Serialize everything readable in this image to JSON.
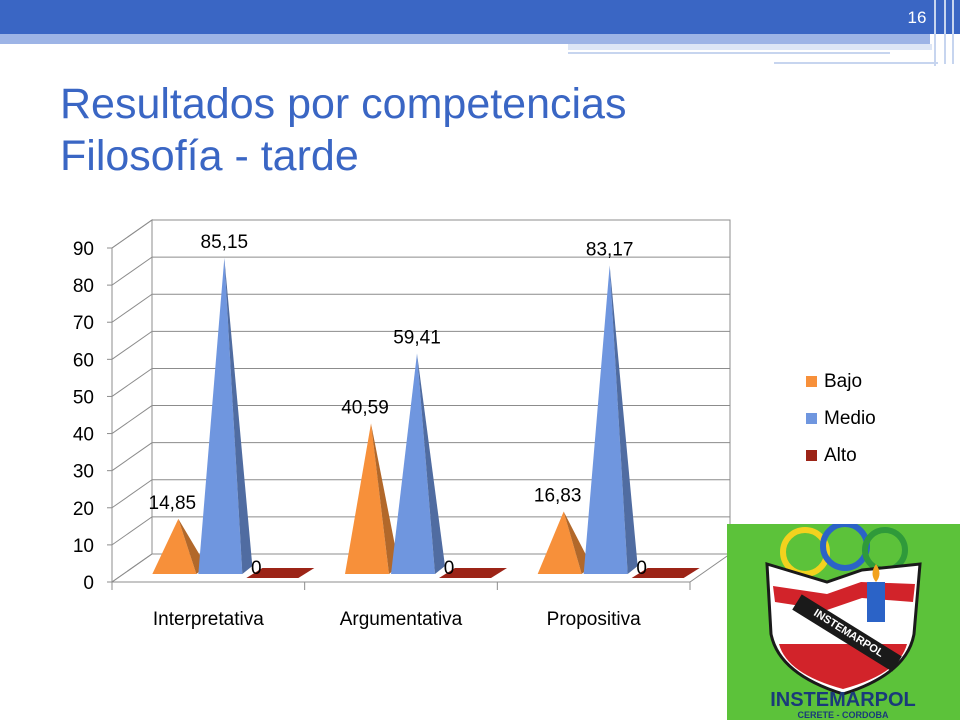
{
  "slide": {
    "number": "16",
    "title_line1": "Resultados por competencias",
    "title_line2": "Filosofía - tarde"
  },
  "logo": {
    "name": "INSTEMARPOL",
    "subtitle": "CERETE - CORDOBA",
    "banner_text": "INSTEMARPOL",
    "colors": {
      "background": "#5cc23a",
      "red": "#d2232a",
      "ring_yellow": "#f2d21e",
      "ring_blue": "#2b63c7",
      "ring_green": "#2f9a3a"
    }
  },
  "chart_data": {
    "type": "bar",
    "style": "3d-cone",
    "categories": [
      "Interpretativa",
      "Argumentativa",
      "Propositiva"
    ],
    "series": [
      {
        "name": "Bajo",
        "values": [
          14.85,
          40.59,
          16.83
        ],
        "labels": [
          "14,85",
          "40,59",
          "16,83"
        ],
        "color": "#f7903a"
      },
      {
        "name": "Medio",
        "values": [
          85.15,
          59.41,
          83.17
        ],
        "labels": [
          "85,15",
          "59,41",
          "83,17"
        ],
        "color": "#6f96df"
      },
      {
        "name": "Alto",
        "values": [
          0,
          0,
          0
        ],
        "labels": [
          "0",
          "0",
          "0"
        ],
        "color": "#9c2417"
      }
    ],
    "ylim": [
      0,
      90
    ],
    "yticks": [
      "0",
      "10",
      "20",
      "30",
      "40",
      "50",
      "60",
      "70",
      "80",
      "90"
    ],
    "grid": true,
    "legend": "right"
  }
}
